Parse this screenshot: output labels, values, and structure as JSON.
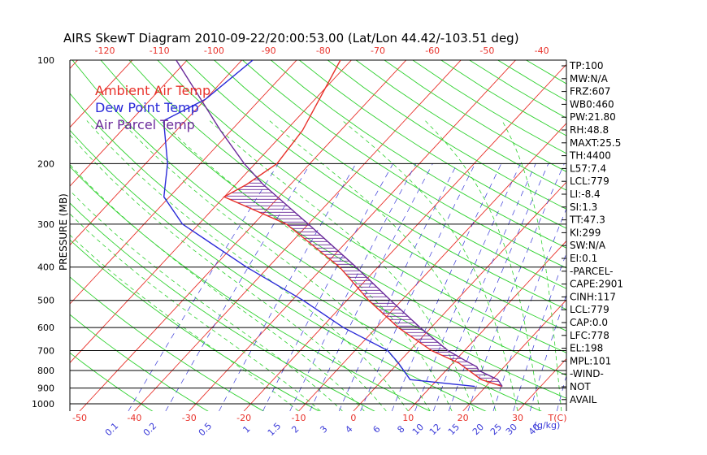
{
  "chart_data": {
    "type": "line",
    "title": "AIRS SkewT Diagram 2010-09-22/20:00:53.00 (Lat/Lon 44.42/-103.51 deg)",
    "ylabel": "PRESSURE (MB)",
    "xlabel_bottom_unit": "T(C)",
    "mixing_ratio_unit": "g/kg",
    "pressure_ticks": [
      "100",
      "200",
      "300",
      "400",
      "500",
      "600",
      "700",
      "800",
      "900",
      "1000"
    ],
    "top_temp_ticks": [
      -120,
      -110,
      -100,
      -90,
      -80,
      -70,
      -60,
      -50,
      -40
    ],
    "bottom_temp_ticks": [
      -50,
      -40,
      -30,
      -20,
      -10,
      0,
      10,
      20,
      30
    ],
    "mixing_ratio_labels": [
      "0.1",
      "0.2",
      "0.5",
      "1",
      "1.5",
      "2",
      "3",
      "4",
      "6",
      "8",
      "10",
      "12",
      "15",
      "20",
      "25",
      "30",
      "40"
    ],
    "legend": [
      {
        "name": "Ambient Air Temp",
        "color": "#e8312a"
      },
      {
        "name": "Dew Point Temp",
        "color": "#2a2ad8"
      },
      {
        "name": "Air Parcel Temp",
        "color": "#6a2a9a"
      }
    ],
    "series": [
      {
        "name": "Ambient Air Temp",
        "color": "#e8312a",
        "points": [
          [
            100,
            -62
          ],
          [
            160,
            -57
          ],
          [
            200,
            -56
          ],
          [
            230,
            -58
          ],
          [
            250,
            -60
          ],
          [
            300,
            -44
          ],
          [
            400,
            -27
          ],
          [
            500,
            -16
          ],
          [
            600,
            -6
          ],
          [
            700,
            4
          ],
          [
            760,
            11
          ],
          [
            850,
            18
          ],
          [
            890,
            23
          ]
        ]
      },
      {
        "name": "Dew Point Temp",
        "color": "#2a2ad8",
        "points": [
          [
            100,
            -78
          ],
          [
            130,
            -80
          ],
          [
            150,
            -84
          ],
          [
            200,
            -76
          ],
          [
            250,
            -71
          ],
          [
            300,
            -63
          ],
          [
            400,
            -44
          ],
          [
            500,
            -28
          ],
          [
            600,
            -16
          ],
          [
            700,
            -4
          ],
          [
            760,
            0
          ],
          [
            850,
            5
          ],
          [
            890,
            18
          ]
        ]
      },
      {
        "name": "Air Parcel Temp",
        "color": "#6a2a9a",
        "points": [
          [
            100,
            -92
          ],
          [
            160,
            -72
          ],
          [
            200,
            -62
          ],
          [
            230,
            -55
          ],
          [
            300,
            -40
          ],
          [
            400,
            -24
          ],
          [
            500,
            -12
          ],
          [
            600,
            -2
          ],
          [
            700,
            7
          ],
          [
            750,
            12
          ],
          [
            780,
            15
          ],
          [
            800,
            16
          ],
          [
            850,
            21
          ],
          [
            890,
            23
          ]
        ]
      }
    ],
    "indices": [
      "TP:100",
      "MW:N/A",
      "FRZ:607",
      "WB0:460",
      "PW:21.80",
      "RH:48.8",
      "MAXT:25.5",
      "TH:4400",
      "L57:7.4",
      "LCL:779",
      "LI:-8.4",
      "SI:1.3",
      "TT:47.3",
      "KI:299",
      "SW:N/A",
      "EI:0.1",
      "-PARCEL-",
      "CAPE:2901",
      "CINH:117",
      "LCL:779",
      "CAP:0.0",
      "LFC:778",
      "EL:198",
      "MPL:101",
      "-WIND-",
      "NOT",
      "AVAIL"
    ]
  },
  "colors": {
    "isotherm": "#e8312a",
    "dry_adiabat": "#2fd12f",
    "moist_adiabat": "#2fd12f",
    "mixing_ratio": "#3a3ad8",
    "isobar": "#000000",
    "hatch": "#6a2a9a"
  }
}
